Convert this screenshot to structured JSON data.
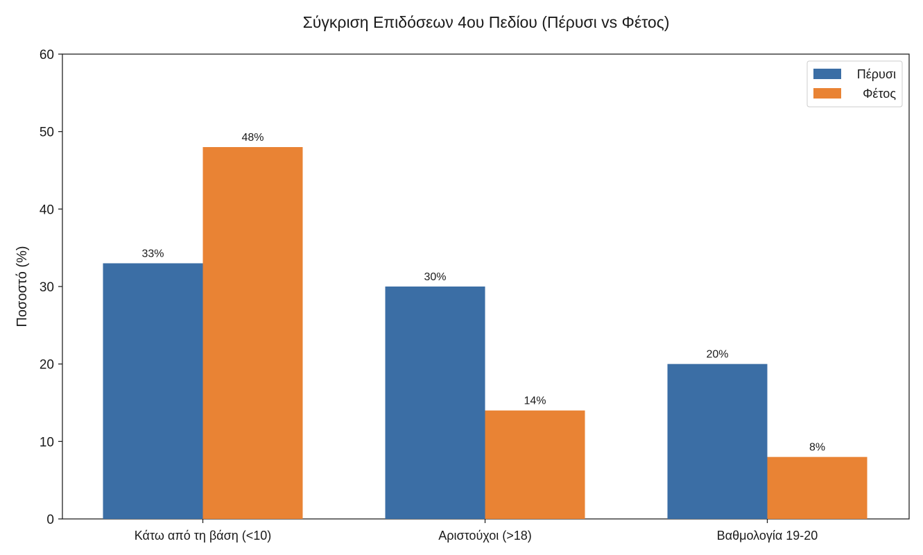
{
  "chart_data": {
    "type": "bar",
    "title": "Σύγκριση Επιδόσεων 4ου Πεδίου (Πέρυσι vs Φέτος)",
    "xlabel": "",
    "ylabel": "Ποσοστό (%)",
    "ylim": [
      0,
      60
    ],
    "yticks": [
      0,
      10,
      20,
      30,
      40,
      50,
      60
    ],
    "categories": [
      "Κάτω από τη βάση (<10)",
      "Αριστούχοι (>18)",
      "Βαθμολογία 19-20"
    ],
    "series": [
      {
        "name": "Πέρυσι",
        "color": "#3b6ea5",
        "values": [
          33,
          30,
          20
        ],
        "labels": [
          "33%",
          "30%",
          "20%"
        ]
      },
      {
        "name": "Φέτος",
        "color": "#e98334",
        "values": [
          48,
          14,
          8
        ],
        "labels": [
          "48%",
          "14%",
          "8%"
        ]
      }
    ],
    "grid": false,
    "legend": "top-right"
  }
}
